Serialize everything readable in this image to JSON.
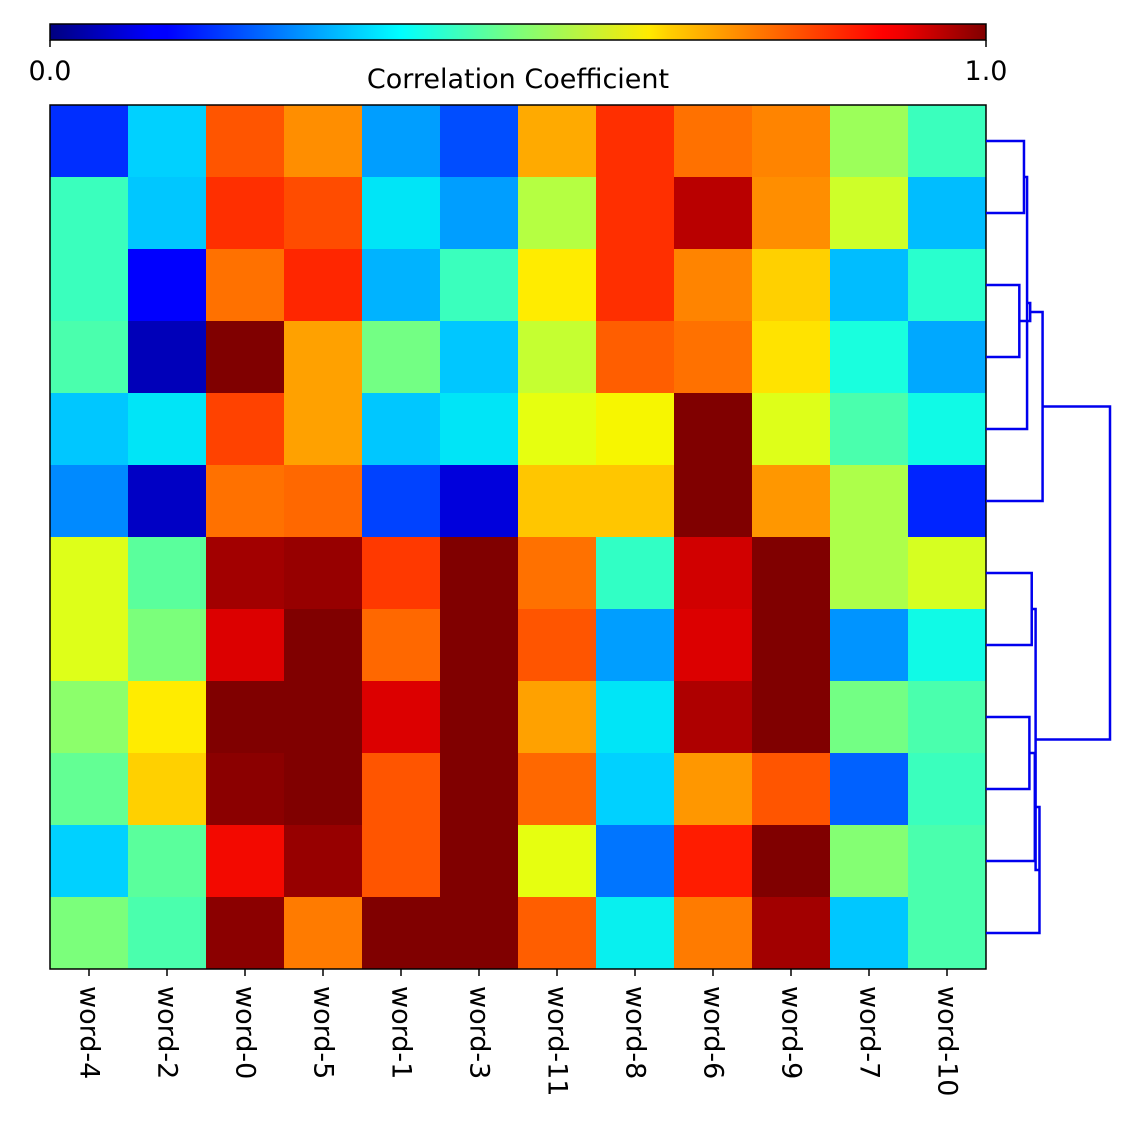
{
  "chart_data": {
    "type": "heatmap",
    "title": "",
    "colorbar": {
      "label": "Correlation Coefficient",
      "min": 0.0,
      "max": 1.0,
      "min_label": "0.0",
      "max_label": "1.0",
      "colormap": "jet",
      "placement": "top"
    },
    "columns": [
      "word-4",
      "word-2",
      "word-0",
      "word-5",
      "word-1",
      "word-3",
      "word-11",
      "word-8",
      "word-6",
      "word-9",
      "word-7",
      "word-10"
    ],
    "row_labels_shown": false,
    "values": [
      [
        0.17,
        0.33,
        0.82,
        0.76,
        0.28,
        0.2,
        0.73,
        0.86,
        0.79,
        0.77,
        0.54,
        0.42
      ],
      [
        0.42,
        0.32,
        0.86,
        0.83,
        0.35,
        0.28,
        0.57,
        0.86,
        0.95,
        0.76,
        0.6,
        0.31
      ],
      [
        0.42,
        0.12,
        0.79,
        0.87,
        0.3,
        0.42,
        0.66,
        0.86,
        0.77,
        0.69,
        0.31,
        0.4
      ],
      [
        0.44,
        0.05,
        1.0,
        0.74,
        0.49,
        0.32,
        0.59,
        0.81,
        0.79,
        0.67,
        0.38,
        0.29
      ],
      [
        0.32,
        0.35,
        0.84,
        0.74,
        0.32,
        0.35,
        0.63,
        0.65,
        1.0,
        0.62,
        0.44,
        0.37
      ],
      [
        0.26,
        0.06,
        0.79,
        0.8,
        0.19,
        0.08,
        0.7,
        0.7,
        1.0,
        0.75,
        0.56,
        0.16
      ],
      [
        0.62,
        0.46,
        0.97,
        0.98,
        0.85,
        1.0,
        0.79,
        0.41,
        0.93,
        1.0,
        0.56,
        0.61
      ],
      [
        0.62,
        0.5,
        0.92,
        1.0,
        0.8,
        1.0,
        0.82,
        0.28,
        0.92,
        1.0,
        0.27,
        0.37
      ],
      [
        0.52,
        0.66,
        1.0,
        1.0,
        0.92,
        1.0,
        0.74,
        0.35,
        0.96,
        1.0,
        0.49,
        0.44
      ],
      [
        0.47,
        0.69,
        0.99,
        1.0,
        0.82,
        1.0,
        0.8,
        0.33,
        0.75,
        0.82,
        0.22,
        0.42
      ],
      [
        0.33,
        0.46,
        0.9,
        0.98,
        0.82,
        1.0,
        0.63,
        0.24,
        0.88,
        1.0,
        0.51,
        0.44
      ],
      [
        0.5,
        0.44,
        0.99,
        0.78,
        1.0,
        1.0,
        0.81,
        0.36,
        0.78,
        0.97,
        0.32,
        0.44
      ]
    ],
    "dendrogram": {
      "side": "right",
      "color": "#0000ee",
      "merges": [
        {
          "left": 0,
          "right": 1,
          "height": 0.49
        },
        {
          "left": 2,
          "right": 3,
          "height": 0.43
        },
        {
          "left": "m0",
          "right": 4,
          "height": 0.53
        },
        {
          "left": "m2",
          "right": "m1",
          "height": 0.57
        },
        {
          "left": "m3",
          "right": 5,
          "height": 0.73
        },
        {
          "left": 6,
          "right": 7,
          "height": 0.59
        },
        {
          "left": 8,
          "right": 9,
          "height": 0.56
        },
        {
          "left": "m6",
          "right": 10,
          "height": 0.63
        },
        {
          "left": "m7",
          "right": 11,
          "height": 0.69
        },
        {
          "left": "m5",
          "right": "m8",
          "height": 0.64
        },
        {
          "left": "m4",
          "right": "m9",
          "height": 1.6
        }
      ]
    }
  }
}
